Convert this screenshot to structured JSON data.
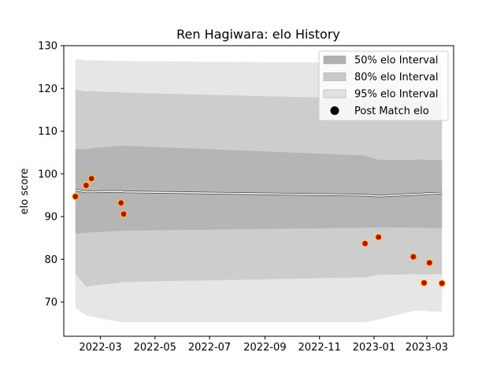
{
  "chart_data": {
    "type": "line",
    "title": "Ren Hagiwara: elo History",
    "xlabel": "",
    "ylabel": "elo score",
    "x_is_date": true,
    "xlim": [
      "2022-01-19",
      "2023-03-31"
    ],
    "ylim": [
      62,
      130
    ],
    "x_ticks": [
      {
        "date": "2022-03-01",
        "label": "2022-03"
      },
      {
        "date": "2022-05-01",
        "label": "2022-05"
      },
      {
        "date": "2022-07-01",
        "label": "2022-07"
      },
      {
        "date": "2022-09-01",
        "label": "2022-09"
      },
      {
        "date": "2022-11-01",
        "label": "2022-11"
      },
      {
        "date": "2023-01-01",
        "label": "2023-01"
      },
      {
        "date": "2023-03-01",
        "label": "2023-03"
      }
    ],
    "y_ticks": [
      70,
      80,
      90,
      100,
      110,
      120,
      130
    ],
    "legend_position": "top-right",
    "colors": {
      "band_50": "#b0b0b0",
      "band_80": "#c8c8c8",
      "band_95": "#e2e2e2",
      "mean_line": "#ffffff",
      "mean_outline": "#444444",
      "point_fill": "#cc0000",
      "point_edge": "#e6d21a",
      "legend_marker": "#000000"
    },
    "legend": [
      {
        "key": "band_50",
        "label": "50% elo Interval"
      },
      {
        "key": "band_80",
        "label": "80% elo Interval"
      },
      {
        "key": "band_95",
        "label": "95% elo Interval"
      },
      {
        "key": "points",
        "label": "Post Match elo"
      }
    ],
    "x": [
      "2022-02-01",
      "2022-02-13",
      "2022-02-19",
      "2022-03-24",
      "2022-03-27",
      "2022-12-22",
      "2023-01-06",
      "2023-02-14",
      "2023-02-26",
      "2023-03-04",
      "2023-03-18"
    ],
    "mean": [
      96.2,
      95.8,
      95.8,
      95.9,
      95.8,
      95.0,
      94.8,
      95.2,
      95.3,
      95.4,
      95.5
    ],
    "band_50": {
      "lower": [
        86.0,
        86.2,
        86.3,
        86.7,
        86.7,
        87.4,
        87.5,
        87.4,
        87.4,
        87.3,
        87.3
      ],
      "upper": [
        105.8,
        105.8,
        106.0,
        106.6,
        106.6,
        104.3,
        103.3,
        103.3,
        103.4,
        103.2,
        103.2
      ]
    },
    "band_80": {
      "lower": [
        76.6,
        73.6,
        73.8,
        74.6,
        74.7,
        75.8,
        76.4,
        76.5,
        76.5,
        76.5,
        76.5
      ],
      "upper": [
        119.7,
        119.3,
        119.3,
        119.1,
        119.0,
        117.6,
        117.4,
        117.3,
        117.3,
        117.2,
        117.2
      ]
    },
    "band_95": {
      "lower": [
        68.6,
        66.9,
        66.6,
        65.3,
        65.3,
        65.3,
        65.9,
        67.9,
        68.0,
        67.8,
        67.8
      ],
      "upper": [
        126.9,
        126.6,
        126.6,
        126.4,
        126.4,
        126.0,
        125.8,
        125.5,
        125.5,
        125.5,
        125.5
      ]
    },
    "points": [
      {
        "x": "2022-02-01",
        "y": 94.7
      },
      {
        "x": "2022-02-13",
        "y": 97.3
      },
      {
        "x": "2022-02-19",
        "y": 98.9
      },
      {
        "x": "2022-03-24",
        "y": 93.2
      },
      {
        "x": "2022-03-27",
        "y": 90.6
      },
      {
        "x": "2022-12-22",
        "y": 83.7
      },
      {
        "x": "2023-01-06",
        "y": 85.2
      },
      {
        "x": "2023-02-14",
        "y": 80.6
      },
      {
        "x": "2023-02-26",
        "y": 74.5
      },
      {
        "x": "2023-03-04",
        "y": 79.2
      },
      {
        "x": "2023-03-18",
        "y": 74.4
      }
    ]
  }
}
